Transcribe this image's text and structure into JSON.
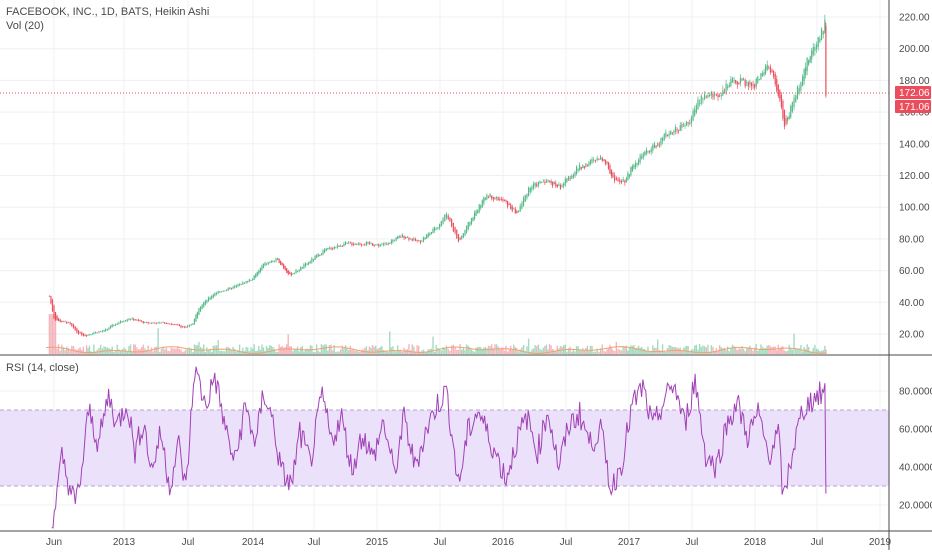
{
  "legend": {
    "main": "FACEBOOK, INC., 1D, BATS, Heikin Ashi",
    "volume": "Vol (20)",
    "rsi": "RSI (14, close)"
  },
  "colors": {
    "up": "#53b987",
    "down": "#eb4d5c",
    "rsi_line": "#a041b5",
    "rsi_band": "#ece1fb",
    "grid": "#eef0f3",
    "axis_line": "#4a4a4a",
    "price_line": "#eb4d5c",
    "vol_up": "#8fd1b0",
    "vol_down": "#f2a3ab"
  },
  "chart_data": [
    {
      "type": "candlestick",
      "title": "FACEBOOK, INC., 1D, BATS, Heikin Ashi",
      "x_tick_labels": [
        "Jun",
        "2013",
        "Jul",
        "2014",
        "Jul",
        "2015",
        "Jul",
        "2016",
        "Jul",
        "2017",
        "Jul",
        "2018",
        "Jul",
        "2019"
      ],
      "x_tick_dates": [
        "2012-06-01",
        "2013-01-01",
        "2013-07-01",
        "2014-01-01",
        "2014-07-01",
        "2015-01-01",
        "2015-07-01",
        "2016-01-01",
        "2016-07-01",
        "2017-01-01",
        "2017-07-01",
        "2018-01-01",
        "2018-07-01",
        "2019-01-01"
      ],
      "y_tick_labels": [
        "20.00",
        "40.00",
        "60.00",
        "80.00",
        "100.00",
        "120.00",
        "140.00",
        "160.00",
        "180.00",
        "200.00",
        "220.00"
      ],
      "ylim": [
        8,
        222
      ],
      "price_labels": [
        "172.06",
        "171.06"
      ],
      "price_line_value": 172.06,
      "close_path": [
        [
          "2012-05-18",
          44
        ],
        [
          "2012-06-01",
          30
        ],
        [
          "2012-06-15",
          28
        ],
        [
          "2012-07-15",
          27
        ],
        [
          "2012-08-10",
          21
        ],
        [
          "2012-09-04",
          19
        ],
        [
          "2012-10-01",
          21
        ],
        [
          "2012-11-01",
          22
        ],
        [
          "2012-12-01",
          26
        ],
        [
          "2013-01-15",
          30
        ],
        [
          "2013-03-01",
          27
        ],
        [
          "2013-05-01",
          27
        ],
        [
          "2013-06-25",
          24
        ],
        [
          "2013-07-15",
          27
        ],
        [
          "2013-08-01",
          37
        ],
        [
          "2013-09-15",
          46
        ],
        [
          "2013-11-01",
          49
        ],
        [
          "2013-12-31",
          55
        ],
        [
          "2014-02-01",
          64
        ],
        [
          "2014-03-15",
          67
        ],
        [
          "2014-04-20",
          57
        ],
        [
          "2014-06-01",
          63
        ],
        [
          "2014-08-01",
          73
        ],
        [
          "2014-10-01",
          77
        ],
        [
          "2014-12-01",
          77
        ],
        [
          "2015-01-15",
          76
        ],
        [
          "2015-03-15",
          82
        ],
        [
          "2015-05-01",
          78
        ],
        [
          "2015-06-20",
          87
        ],
        [
          "2015-07-20",
          96
        ],
        [
          "2015-08-24",
          78
        ],
        [
          "2015-10-01",
          93
        ],
        [
          "2015-11-15",
          108
        ],
        [
          "2016-01-01",
          104
        ],
        [
          "2016-02-10",
          96
        ],
        [
          "2016-03-15",
          112
        ],
        [
          "2016-05-01",
          117
        ],
        [
          "2016-06-15",
          113
        ],
        [
          "2016-08-01",
          124
        ],
        [
          "2016-09-15",
          129
        ],
        [
          "2016-10-20",
          131
        ],
        [
          "2016-11-15",
          118
        ],
        [
          "2016-12-20",
          117
        ],
        [
          "2017-01-15",
          128
        ],
        [
          "2017-03-01",
          136
        ],
        [
          "2017-05-01",
          148
        ],
        [
          "2017-06-20",
          153
        ],
        [
          "2017-07-28",
          170
        ],
        [
          "2017-09-15",
          171
        ],
        [
          "2017-11-01",
          180
        ],
        [
          "2017-12-31",
          177
        ],
        [
          "2018-02-01",
          189
        ],
        [
          "2018-03-01",
          180
        ],
        [
          "2018-03-28",
          152
        ],
        [
          "2018-04-20",
          164
        ],
        [
          "2018-05-20",
          185
        ],
        [
          "2018-06-20",
          200
        ],
        [
          "2018-07-24",
          216
        ],
        [
          "2018-07-27",
          172
        ]
      ]
    },
    {
      "type": "bar",
      "title": "Vol (20)",
      "description_values": "daily volume histogram, small relative bars with spikes at IPO (May 2012), Jul 2013, Jul 2014, Mar 2018 and Jul 2018"
    },
    {
      "type": "line",
      "title": "RSI (14, close)",
      "y_tick_labels": [
        "20.0000",
        "40.0000",
        "60.0000",
        "80.0000"
      ],
      "ylim": [
        5,
        97
      ],
      "band": [
        30,
        70
      ],
      "path": [
        [
          "2012-05-25",
          10
        ],
        [
          "2012-06-10",
          25
        ],
        [
          "2012-06-25",
          45
        ],
        [
          "2012-07-15",
          32
        ],
        [
          "2012-08-05",
          20
        ],
        [
          "2012-08-25",
          38
        ],
        [
          "2012-09-15",
          70
        ],
        [
          "2012-10-15",
          52
        ],
        [
          "2012-11-15",
          78
        ],
        [
          "2012-12-10",
          62
        ],
        [
          "2013-01-10",
          74
        ],
        [
          "2013-02-01",
          48
        ],
        [
          "2013-02-25",
          64
        ],
        [
          "2013-03-20",
          38
        ],
        [
          "2013-04-15",
          58
        ],
        [
          "2013-05-10",
          30
        ],
        [
          "2013-06-05",
          52
        ],
        [
          "2013-06-25",
          28
        ],
        [
          "2013-07-20",
          92
        ],
        [
          "2013-08-20",
          72
        ],
        [
          "2013-09-15",
          88
        ],
        [
          "2013-10-15",
          60
        ],
        [
          "2013-11-10",
          42
        ],
        [
          "2013-12-10",
          72
        ],
        [
          "2014-01-10",
          52
        ],
        [
          "2014-02-01",
          80
        ],
        [
          "2014-03-01",
          64
        ],
        [
          "2014-03-25",
          38
        ],
        [
          "2014-04-25",
          30
        ],
        [
          "2014-05-20",
          58
        ],
        [
          "2014-06-20",
          42
        ],
        [
          "2014-07-25",
          78
        ],
        [
          "2014-08-20",
          54
        ],
        [
          "2014-09-20",
          66
        ],
        [
          "2014-10-20",
          38
        ],
        [
          "2014-11-20",
          58
        ],
        [
          "2014-12-20",
          44
        ],
        [
          "2015-01-20",
          64
        ],
        [
          "2015-02-20",
          36
        ],
        [
          "2015-03-20",
          66
        ],
        [
          "2015-04-20",
          40
        ],
        [
          "2015-05-20",
          58
        ],
        [
          "2015-06-20",
          72
        ],
        [
          "2015-07-20",
          80
        ],
        [
          "2015-08-24",
          30
        ],
        [
          "2015-09-20",
          58
        ],
        [
          "2015-10-20",
          70
        ],
        [
          "2015-11-20",
          56
        ],
        [
          "2016-01-10",
          34
        ],
        [
          "2016-02-10",
          54
        ],
        [
          "2016-03-10",
          66
        ],
        [
          "2016-04-10",
          48
        ],
        [
          "2016-05-10",
          70
        ],
        [
          "2016-06-10",
          40
        ],
        [
          "2016-07-10",
          62
        ],
        [
          "2016-08-10",
          68
        ],
        [
          "2016-09-10",
          52
        ],
        [
          "2016-10-10",
          60
        ],
        [
          "2016-11-10",
          28
        ],
        [
          "2016-12-10",
          42
        ],
        [
          "2017-01-10",
          72
        ],
        [
          "2017-02-10",
          82
        ],
        [
          "2017-03-10",
          60
        ],
        [
          "2017-04-10",
          74
        ],
        [
          "2017-05-10",
          84
        ],
        [
          "2017-06-10",
          62
        ],
        [
          "2017-07-10",
          86
        ],
        [
          "2017-08-10",
          46
        ],
        [
          "2017-09-10",
          40
        ],
        [
          "2017-10-10",
          62
        ],
        [
          "2017-11-10",
          74
        ],
        [
          "2017-12-10",
          56
        ],
        [
          "2018-01-10",
          68
        ],
        [
          "2018-02-10",
          46
        ],
        [
          "2018-03-10",
          58
        ],
        [
          "2018-03-25",
          22
        ],
        [
          "2018-04-20",
          48
        ],
        [
          "2018-05-20",
          70
        ],
        [
          "2018-06-20",
          76
        ],
        [
          "2018-07-24",
          80
        ],
        [
          "2018-07-27",
          26
        ]
      ]
    }
  ]
}
